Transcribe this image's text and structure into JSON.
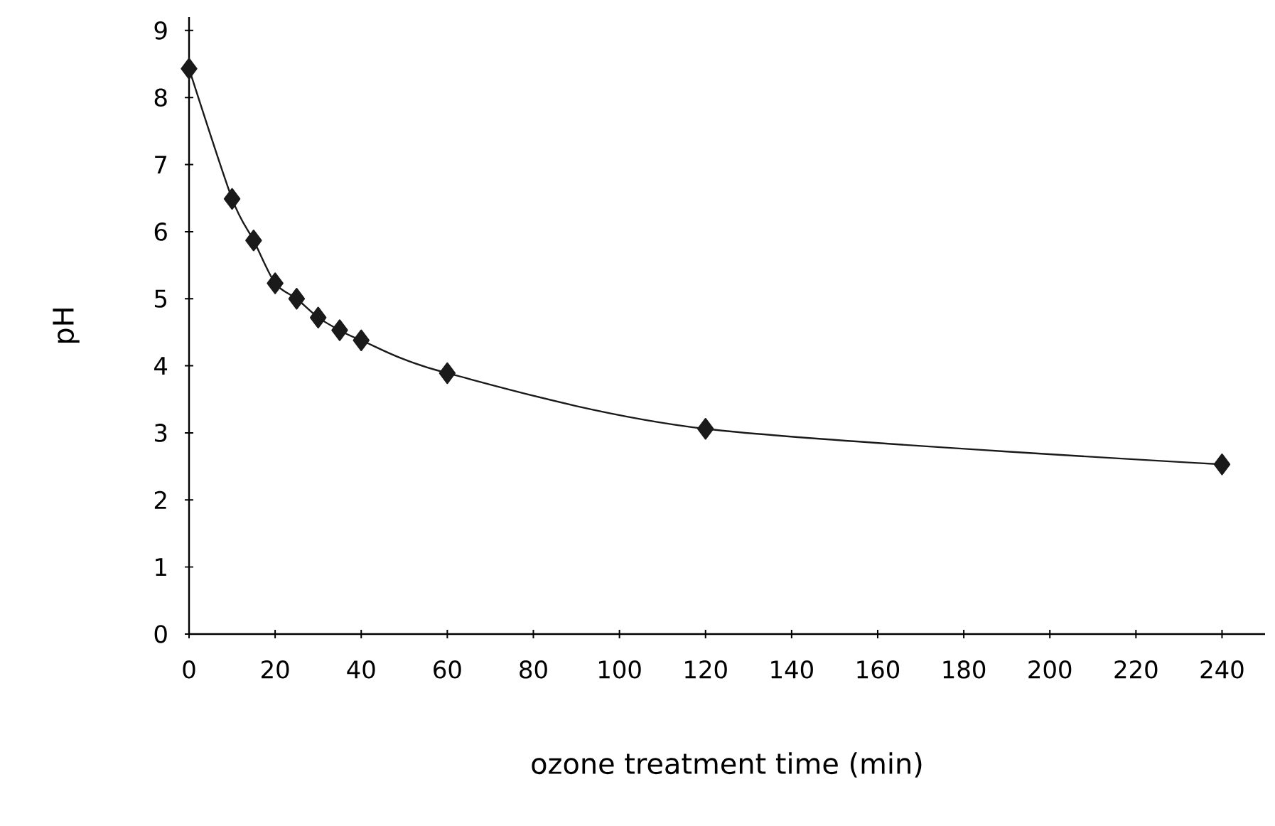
{
  "chart_data": {
    "type": "line",
    "xlabel": "ozone treatment time (min)",
    "ylabel": "pH",
    "x": [
      0,
      10,
      15,
      20,
      25,
      30,
      35,
      40,
      60,
      120,
      240
    ],
    "series": [
      {
        "color": "#1a1a1a",
        "values": [
          8.43,
          6.49,
          5.87,
          5.23,
          5.0,
          4.72,
          4.53,
          4.38,
          3.89,
          3.06,
          2.53
        ]
      }
    ],
    "xlim": [
      0,
      250
    ],
    "ylim": [
      0,
      9.2
    ],
    "xticks": [
      0,
      20,
      40,
      60,
      80,
      100,
      120,
      140,
      160,
      180,
      200,
      220,
      240
    ],
    "yticks": [
      0,
      1,
      2,
      3,
      4,
      5,
      6,
      7,
      8,
      9
    ],
    "marker": "diamond",
    "line_style": "solid",
    "grid": false
  }
}
